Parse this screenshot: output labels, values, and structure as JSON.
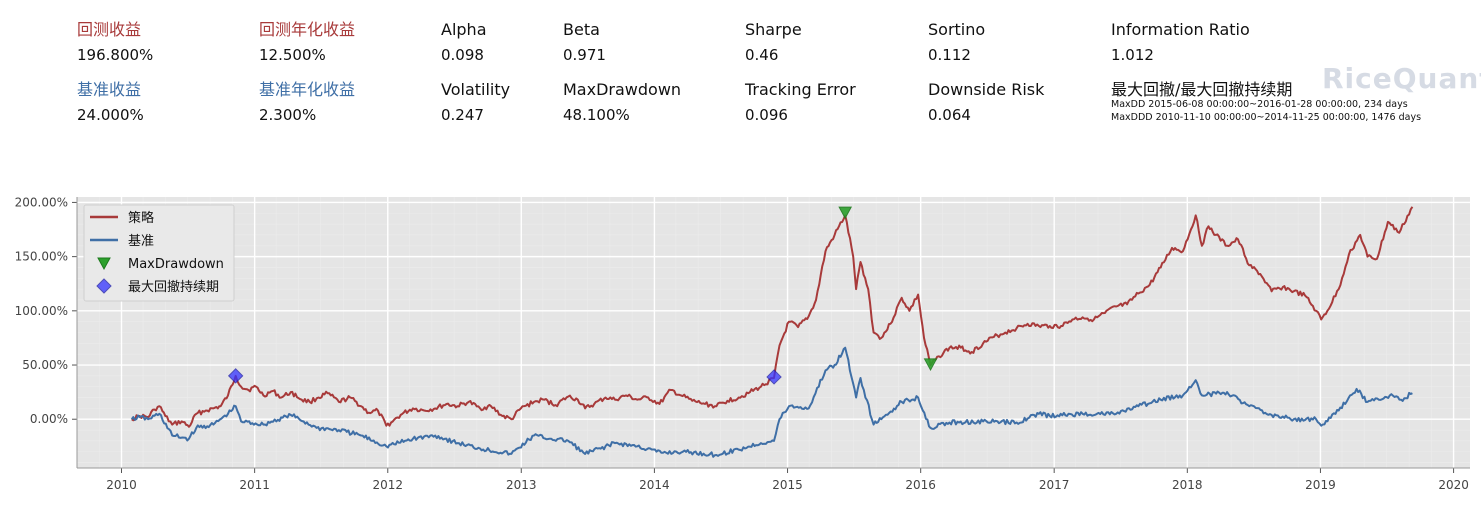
{
  "metrics": {
    "row1": [
      {
        "label": "回测收益",
        "value": "196.800%",
        "color": "red"
      },
      {
        "label": "回测年化收益",
        "value": "12.500%",
        "color": "red"
      },
      {
        "label": "Alpha",
        "value": "0.098"
      },
      {
        "label": "Beta",
        "value": "0.971"
      },
      {
        "label": "Sharpe",
        "value": "0.46"
      },
      {
        "label": "Sortino",
        "value": "0.112"
      },
      {
        "label": "Information Ratio",
        "value": "1.012"
      }
    ],
    "row2": [
      {
        "label": "基准收益",
        "value": "24.000%",
        "color": "blue"
      },
      {
        "label": "基准年化收益",
        "value": "2.300%",
        "color": "blue"
      },
      {
        "label": "Volatility",
        "value": "0.247"
      },
      {
        "label": "MaxDrawdown",
        "value": "48.100%"
      },
      {
        "label": "Tracking Error",
        "value": "0.096"
      },
      {
        "label": "Downside Risk",
        "value": "0.064"
      },
      {
        "label": "最大回撤/最大回撤持续期",
        "value": ""
      }
    ],
    "maxdd_line": "MaxDD  2015-06-08 00:00:00~2016-01-28 00:00:00, 234 days",
    "maxddd_line": "MaxDDD 2010-11-10 00:00:00~2014-11-25 00:00:00, 1476 days"
  },
  "watermark": "RiceQuant",
  "colors": {
    "strategy": "#a83a3a",
    "benchmark": "#3f6fa6",
    "label_red": "#a83a3a",
    "label_blue": "#3f6fa6",
    "maxdd_marker": "#2ca02c",
    "maxddd_marker": "#3333ff",
    "plot_bg": "#e5e5e5"
  },
  "chart_data": {
    "type": "line",
    "x_type": "date",
    "xlim": [
      "2009-09-01",
      "2020-02-15"
    ],
    "ylim": [
      -0.45,
      2.05
    ],
    "x_ticks": [
      "2010",
      "2011",
      "2012",
      "2013",
      "2014",
      "2015",
      "2016",
      "2017",
      "2018",
      "2019",
      "2020"
    ],
    "y_ticks": [
      0,
      0.5,
      1.0,
      1.5,
      2.0
    ],
    "y_tick_labels": [
      "0.00%",
      "50.00%",
      "100.00%",
      "150.00%",
      "200.00%"
    ],
    "grid": true,
    "legend_position": "top-left",
    "series": [
      {
        "name": "策略",
        "color": "strategy",
        "points": [
          [
            "2010-01-29",
            0.0
          ],
          [
            "2010-02-20",
            0.03
          ],
          [
            "2010-03-15",
            0.02
          ],
          [
            "2010-04-01",
            0.09
          ],
          [
            "2010-04-15",
            0.12
          ],
          [
            "2010-05-01",
            0.03
          ],
          [
            "2010-05-20",
            -0.05
          ],
          [
            "2010-06-15",
            -0.02
          ],
          [
            "2010-07-05",
            -0.07
          ],
          [
            "2010-07-25",
            0.05
          ],
          [
            "2010-08-20",
            0.08
          ],
          [
            "2010-09-10",
            0.1
          ],
          [
            "2010-09-30",
            0.12
          ],
          [
            "2010-10-20",
            0.22
          ],
          [
            "2010-11-10",
            0.4
          ],
          [
            "2010-11-25",
            0.3
          ],
          [
            "2010-12-15",
            0.27
          ],
          [
            "2011-01-05",
            0.3
          ],
          [
            "2011-01-25",
            0.22
          ],
          [
            "2011-02-20",
            0.26
          ],
          [
            "2011-03-15",
            0.2
          ],
          [
            "2011-04-10",
            0.25
          ],
          [
            "2011-05-10",
            0.18
          ],
          [
            "2011-06-01",
            0.16
          ],
          [
            "2011-06-25",
            0.2
          ],
          [
            "2011-07-20",
            0.24
          ],
          [
            "2011-08-20",
            0.16
          ],
          [
            "2011-09-20",
            0.2
          ],
          [
            "2011-10-20",
            0.12
          ],
          [
            "2011-11-10",
            0.06
          ],
          [
            "2011-12-05",
            0.08
          ],
          [
            "2011-12-28",
            -0.06
          ],
          [
            "2012-01-10",
            -0.03
          ],
          [
            "2012-02-10",
            0.05
          ],
          [
            "2012-03-10",
            0.1
          ],
          [
            "2012-04-10",
            0.08
          ],
          [
            "2012-05-10",
            0.1
          ],
          [
            "2012-06-10",
            0.14
          ],
          [
            "2012-07-10",
            0.12
          ],
          [
            "2012-08-10",
            0.16
          ],
          [
            "2012-09-10",
            0.1
          ],
          [
            "2012-10-10",
            0.12
          ],
          [
            "2012-11-10",
            0.03
          ],
          [
            "2012-12-05",
            0.0
          ],
          [
            "2012-12-31",
            0.1
          ],
          [
            "2013-02-05",
            0.16
          ],
          [
            "2013-03-05",
            0.18
          ],
          [
            "2013-04-05",
            0.13
          ],
          [
            "2013-05-10",
            0.21
          ],
          [
            "2013-06-05",
            0.18
          ],
          [
            "2013-06-25",
            0.1
          ],
          [
            "2013-07-20",
            0.14
          ],
          [
            "2013-08-20",
            0.2
          ],
          [
            "2013-09-15",
            0.18
          ],
          [
            "2013-10-15",
            0.22
          ],
          [
            "2013-11-15",
            0.18
          ],
          [
            "2013-12-15",
            0.2
          ],
          [
            "2014-01-15",
            0.14
          ],
          [
            "2014-02-15",
            0.27
          ],
          [
            "2014-03-15",
            0.22
          ],
          [
            "2014-04-15",
            0.17
          ],
          [
            "2014-05-20",
            0.14
          ],
          [
            "2014-06-20",
            0.12
          ],
          [
            "2014-07-20",
            0.17
          ],
          [
            "2014-08-20",
            0.2
          ],
          [
            "2014-09-20",
            0.25
          ],
          [
            "2014-10-20",
            0.3
          ],
          [
            "2014-11-25",
            0.38
          ],
          [
            "2014-12-10",
            0.68
          ],
          [
            "2015-01-05",
            0.9
          ],
          [
            "2015-01-30",
            0.85
          ],
          [
            "2015-02-28",
            0.95
          ],
          [
            "2015-03-20",
            1.1
          ],
          [
            "2015-04-15",
            1.55
          ],
          [
            "2015-05-10",
            1.7
          ],
          [
            "2015-06-08",
            1.88
          ],
          [
            "2015-06-30",
            1.5
          ],
          [
            "2015-07-08",
            1.2
          ],
          [
            "2015-07-20",
            1.45
          ],
          [
            "2015-08-10",
            1.2
          ],
          [
            "2015-08-25",
            0.8
          ],
          [
            "2015-09-15",
            0.75
          ],
          [
            "2015-10-10",
            0.88
          ],
          [
            "2015-11-10",
            1.12
          ],
          [
            "2015-12-01",
            1.0
          ],
          [
            "2015-12-25",
            1.15
          ],
          [
            "2016-01-10",
            0.75
          ],
          [
            "2016-01-28",
            0.5
          ],
          [
            "2016-02-20",
            0.58
          ],
          [
            "2016-03-20",
            0.66
          ],
          [
            "2016-04-20",
            0.66
          ],
          [
            "2016-05-20",
            0.62
          ],
          [
            "2016-06-20",
            0.7
          ],
          [
            "2016-07-20",
            0.76
          ],
          [
            "2016-08-20",
            0.8
          ],
          [
            "2016-09-20",
            0.84
          ],
          [
            "2016-10-20",
            0.88
          ],
          [
            "2016-11-20",
            0.86
          ],
          [
            "2016-12-20",
            0.86
          ],
          [
            "2017-01-20",
            0.86
          ],
          [
            "2017-02-20",
            0.92
          ],
          [
            "2017-03-20",
            0.94
          ],
          [
            "2017-04-20",
            0.92
          ],
          [
            "2017-05-20",
            0.98
          ],
          [
            "2017-06-20",
            1.04
          ],
          [
            "2017-07-20",
            1.06
          ],
          [
            "2017-08-20",
            1.16
          ],
          [
            "2017-09-20",
            1.24
          ],
          [
            "2017-10-20",
            1.4
          ],
          [
            "2017-11-20",
            1.58
          ],
          [
            "2017-12-20",
            1.55
          ],
          [
            "2018-01-24",
            1.88
          ],
          [
            "2018-02-10",
            1.6
          ],
          [
            "2018-02-28",
            1.78
          ],
          [
            "2018-03-20",
            1.7
          ],
          [
            "2018-04-20",
            1.6
          ],
          [
            "2018-05-20",
            1.66
          ],
          [
            "2018-06-20",
            1.42
          ],
          [
            "2018-07-20",
            1.34
          ],
          [
            "2018-08-20",
            1.18
          ],
          [
            "2018-09-20",
            1.22
          ],
          [
            "2018-10-20",
            1.18
          ],
          [
            "2018-11-20",
            1.14
          ],
          [
            "2018-12-20",
            1.0
          ],
          [
            "2019-01-03",
            0.92
          ],
          [
            "2019-01-20",
            1.0
          ],
          [
            "2019-02-20",
            1.2
          ],
          [
            "2019-03-20",
            1.52
          ],
          [
            "2019-04-20",
            1.7
          ],
          [
            "2019-05-10",
            1.5
          ],
          [
            "2019-06-05",
            1.48
          ],
          [
            "2019-07-05",
            1.82
          ],
          [
            "2019-08-05",
            1.72
          ],
          [
            "2019-09-10",
            1.96
          ]
        ]
      },
      {
        "name": "基准",
        "color": "benchmark",
        "points": [
          [
            "2010-01-29",
            0.0
          ],
          [
            "2010-02-20",
            0.02
          ],
          [
            "2010-03-15",
            0.0
          ],
          [
            "2010-04-15",
            0.05
          ],
          [
            "2010-05-20",
            -0.15
          ],
          [
            "2010-07-05",
            -0.18
          ],
          [
            "2010-07-25",
            -0.08
          ],
          [
            "2010-09-10",
            -0.05
          ],
          [
            "2010-10-20",
            0.05
          ],
          [
            "2010-11-10",
            0.12
          ],
          [
            "2010-11-25",
            -0.02
          ],
          [
            "2011-01-25",
            -0.05
          ],
          [
            "2011-04-10",
            0.04
          ],
          [
            "2011-06-20",
            -0.08
          ],
          [
            "2011-08-20",
            -0.1
          ],
          [
            "2011-10-20",
            -0.15
          ],
          [
            "2011-12-28",
            -0.25
          ],
          [
            "2012-03-10",
            -0.18
          ],
          [
            "2012-05-10",
            -0.15
          ],
          [
            "2012-07-10",
            -0.22
          ],
          [
            "2012-09-10",
            -0.27
          ],
          [
            "2012-12-05",
            -0.32
          ],
          [
            "2013-02-05",
            -0.15
          ],
          [
            "2013-03-20",
            -0.18
          ],
          [
            "2013-05-10",
            -0.2
          ],
          [
            "2013-06-25",
            -0.32
          ],
          [
            "2013-09-15",
            -0.22
          ],
          [
            "2013-11-15",
            -0.25
          ],
          [
            "2014-01-20",
            -0.31
          ],
          [
            "2014-03-20",
            -0.3
          ],
          [
            "2014-06-20",
            -0.33
          ],
          [
            "2014-08-20",
            -0.28
          ],
          [
            "2014-10-20",
            -0.22
          ],
          [
            "2014-11-25",
            -0.2
          ],
          [
            "2014-12-10",
            0.0
          ],
          [
            "2015-01-05",
            0.12
          ],
          [
            "2015-02-28",
            0.1
          ],
          [
            "2015-04-15",
            0.45
          ],
          [
            "2015-05-10",
            0.5
          ],
          [
            "2015-06-08",
            0.66
          ],
          [
            "2015-07-08",
            0.2
          ],
          [
            "2015-07-20",
            0.38
          ],
          [
            "2015-08-25",
            -0.05
          ],
          [
            "2015-09-15",
            0.0
          ],
          [
            "2015-11-10",
            0.16
          ],
          [
            "2015-12-25",
            0.2
          ],
          [
            "2016-01-28",
            -0.08
          ],
          [
            "2016-03-20",
            -0.03
          ],
          [
            "2016-06-20",
            -0.02
          ],
          [
            "2016-09-20",
            -0.03
          ],
          [
            "2016-11-20",
            0.05
          ],
          [
            "2016-12-20",
            0.03
          ],
          [
            "2017-03-20",
            0.05
          ],
          [
            "2017-06-20",
            0.05
          ],
          [
            "2017-08-20",
            0.12
          ],
          [
            "2017-10-20",
            0.18
          ],
          [
            "2017-12-20",
            0.22
          ],
          [
            "2018-01-24",
            0.36
          ],
          [
            "2018-02-10",
            0.22
          ],
          [
            "2018-04-20",
            0.25
          ],
          [
            "2018-06-20",
            0.12
          ],
          [
            "2018-08-20",
            0.04
          ],
          [
            "2018-10-20",
            0.0
          ],
          [
            "2018-12-20",
            0.0
          ],
          [
            "2019-01-03",
            -0.06
          ],
          [
            "2019-02-20",
            0.08
          ],
          [
            "2019-04-10",
            0.28
          ],
          [
            "2019-05-10",
            0.16
          ],
          [
            "2019-06-10",
            0.18
          ],
          [
            "2019-07-10",
            0.22
          ],
          [
            "2019-08-10",
            0.18
          ],
          [
            "2019-09-10",
            0.24
          ]
        ]
      }
    ],
    "markers": [
      {
        "name": "MaxDrawdown",
        "shape": "triangle-down",
        "color": "maxdd_marker",
        "points": [
          [
            "2015-06-08",
            1.91
          ],
          [
            "2016-01-28",
            0.51
          ]
        ]
      },
      {
        "name": "最大回撤持续期",
        "shape": "diamond",
        "color": "maxddd_marker",
        "points": [
          [
            "2010-11-10",
            0.4
          ],
          [
            "2014-11-25",
            0.39
          ]
        ]
      }
    ],
    "legend": [
      "策略",
      "基准",
      "MaxDrawdown",
      "最大回撤持续期"
    ]
  }
}
